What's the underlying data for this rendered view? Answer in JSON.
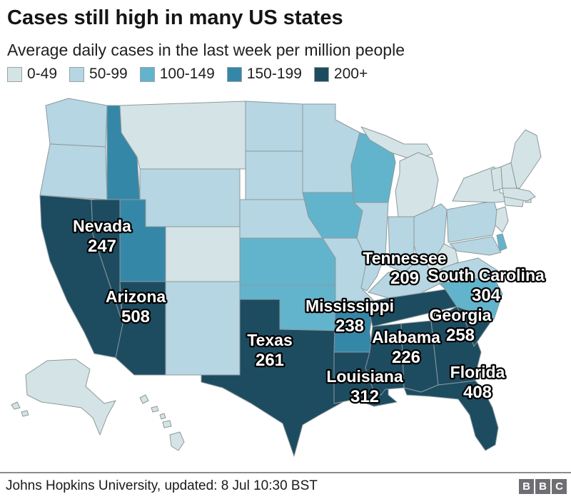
{
  "title": "Cases still high in many US states",
  "subtitle": "Average daily cases in the last week per million people",
  "legend": {
    "items": [
      {
        "label": "0-49",
        "color": "#d4e4e6"
      },
      {
        "label": "50-99",
        "color": "#b5d6e2"
      },
      {
        "label": "100-149",
        "color": "#62b4cc"
      },
      {
        "label": "150-199",
        "color": "#3587a8"
      },
      {
        "label": "200+",
        "color": "#1d4c61"
      }
    ]
  },
  "map": {
    "border_color": "#8e989b",
    "ocean_color": "#ffffff",
    "labels": [
      {
        "state": "Nevada",
        "value": "247"
      },
      {
        "state": "Arizona",
        "value": "508"
      },
      {
        "state": "Texas",
        "value": "261"
      },
      {
        "state": "Tennessee",
        "value": "209"
      },
      {
        "state": "South Carolina",
        "value": "304"
      },
      {
        "state": "Mississippi",
        "value": "238"
      },
      {
        "state": "Georgia",
        "value": "258"
      },
      {
        "state": "Alabama",
        "value": "226"
      },
      {
        "state": "Louisiana",
        "value": "312"
      },
      {
        "state": "Florida",
        "value": "408"
      }
    ]
  },
  "chart_data": {
    "type": "heatmap",
    "subtype": "us_state_choropleth",
    "title": "Cases still high in many US states",
    "subtitle": "Average daily cases in the last week per million people",
    "unit": "average daily cases in the last week per million people",
    "legend_position": "top-left",
    "bins": [
      {
        "label": "0-49",
        "color": "#d4e4e6"
      },
      {
        "label": "50-99",
        "color": "#b5d6e2"
      },
      {
        "label": "100-149",
        "color": "#62b4cc"
      },
      {
        "label": "150-199",
        "color": "#3587a8"
      },
      {
        "label": "200+",
        "color": "#1d4c61"
      }
    ],
    "labeled_values": {
      "Nevada": 247,
      "Arizona": 508,
      "Texas": 261,
      "Tennessee": 209,
      "South Carolina": 304,
      "Mississippi": 238,
      "Georgia": 258,
      "Alabama": 226,
      "Louisiana": 312,
      "Florida": 408
    },
    "state_bins": {
      "WA": "50-99",
      "OR": "50-99",
      "CA": "200+",
      "NV": "200+",
      "ID": "150-199",
      "MT": "0-49",
      "WY": "50-99",
      "UT": "150-199",
      "CO": "0-49",
      "AZ": "200+",
      "NM": "50-99",
      "ND": "50-99",
      "SD": "50-99",
      "NE": "50-99",
      "KS": "100-149",
      "OK": "100-149",
      "TX": "200+",
      "MN": "50-99",
      "IA": "100-149",
      "MO": "50-99",
      "AR": "150-199",
      "LA": "200+",
      "WI": "100-149",
      "IL": "50-99",
      "MS": "200+",
      "MI": "0-49",
      "IN": "50-99",
      "OH": "50-99",
      "KY": "50-99",
      "TN": "200+",
      "AL": "200+",
      "GA": "200+",
      "FL": "200+",
      "SC": "200+",
      "NC": "100-149",
      "VA": "50-99",
      "WV": "0-49",
      "MD": "50-99",
      "DE": "100-149",
      "PA": "50-99",
      "NY": "0-49",
      "NJ": "0-49",
      "CT": "0-49",
      "RI": "0-49",
      "MA": "0-49",
      "VT": "0-49",
      "NH": "0-49",
      "ME": "0-49",
      "AK": "0-49",
      "HI": "0-49"
    }
  },
  "footer": {
    "source": "Johns Hopkins University, updated: 8 Jul 10:30 BST",
    "logo_letters": [
      "B",
      "B",
      "C"
    ]
  }
}
